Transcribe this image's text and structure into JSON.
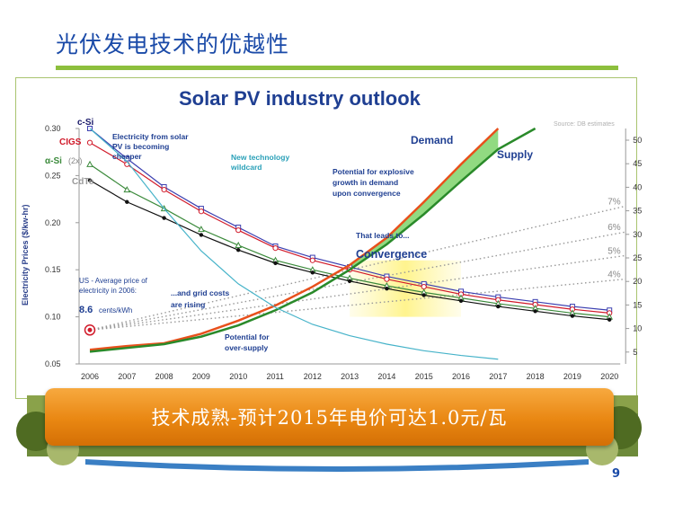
{
  "slide": {
    "title": "光伏发电技术的优越性",
    "banner": "技术成熟-预计2015年电价可达1.0元/瓦",
    "page_number": "9"
  },
  "chart_data": {
    "type": "line",
    "title": "Solar PV industry outlook",
    "source": "Source: DB estimates",
    "ylabel": "Electricity Prices ($/kw-hr)",
    "xlabel": "",
    "x": [
      2006,
      2007,
      2008,
      2009,
      2010,
      2011,
      2012,
      2013,
      2014,
      2015,
      2016,
      2017,
      2018,
      2019,
      2020
    ],
    "x_ticks": [
      "2006",
      "2007",
      "2008",
      "2009",
      "2010",
      "2011",
      "2012",
      "2013",
      "2014",
      "2015",
      "2016",
      "2017",
      "2018",
      "2019",
      "2020"
    ],
    "ylim": [
      0.05,
      0.3
    ],
    "y_ticks": [
      "0.05",
      "0.10",
      "0.15",
      "0.20",
      "0.25",
      "0.30"
    ],
    "y2lim": [
      0,
      50
    ],
    "y2_ticks": [
      "5",
      "10",
      "15",
      "20",
      "25",
      "30",
      "35",
      "40",
      "45",
      "50"
    ],
    "grid": false,
    "series": [
      {
        "name": "c-Si",
        "color": "#3b3fb0",
        "marker": "square",
        "values": [
          0.3,
          0.268,
          0.238,
          0.215,
          0.195,
          0.175,
          0.163,
          0.153,
          0.143,
          0.135,
          0.127,
          0.121,
          0.116,
          0.111,
          0.107
        ]
      },
      {
        "name": "CIGS",
        "color": "#d11a2a",
        "marker": "circle",
        "values": [
          0.285,
          0.262,
          0.235,
          0.212,
          0.192,
          0.173,
          0.16,
          0.15,
          0.14,
          0.132,
          0.124,
          0.118,
          0.113,
          0.108,
          0.104
        ]
      },
      {
        "name": "α-Si (2x)",
        "color": "#3b8a3b",
        "marker": "triangle",
        "values": [
          0.262,
          0.235,
          0.215,
          0.193,
          0.176,
          0.16,
          0.15,
          0.141,
          0.133,
          0.126,
          0.12,
          0.114,
          0.109,
          0.104,
          0.1
        ]
      },
      {
        "name": "CdTe",
        "color": "#111111",
        "marker": "diamond",
        "values": [
          0.245,
          0.222,
          0.205,
          0.187,
          0.171,
          0.157,
          0.147,
          0.138,
          0.13,
          0.123,
          0.117,
          0.111,
          0.106,
          0.101,
          0.097
        ]
      },
      {
        "name": "Demand",
        "color": "#e8501c",
        "values": [
          0.065,
          0.069,
          0.072,
          0.082,
          0.096,
          0.112,
          0.132,
          0.155,
          0.184,
          0.222,
          0.262,
          0.3,
          null,
          null,
          null
        ]
      },
      {
        "name": "Supply",
        "color": "#2a8a2a",
        "values": [
          0.063,
          0.067,
          0.071,
          0.079,
          0.091,
          0.107,
          0.126,
          0.15,
          0.177,
          0.209,
          0.244,
          0.278,
          0.3,
          null,
          null
        ]
      },
      {
        "name": "New technology wildcard",
        "color": "#46b3c9",
        "values": [
          0.3,
          0.265,
          0.215,
          0.17,
          0.135,
          0.11,
          0.092,
          0.08,
          0.071,
          0.064,
          0.059,
          0.055,
          null,
          null,
          null
        ]
      }
    ],
    "growth_lines": [
      {
        "label": "7%",
        "y2_end": 36.0
      },
      {
        "label": "6%",
        "y2_end": 30.5
      },
      {
        "label": "5%",
        "y2_end": 25.5
      },
      {
        "label": "4%",
        "y2_end": 20.5
      }
    ],
    "growth_base": {
      "x": 2006,
      "y": 0.086
    },
    "legend_labels": [
      "c-Si",
      "CIGS",
      "α-Si",
      "(2x)",
      "CdTe"
    ],
    "annotations": {
      "cheaper": [
        "Electricity from solar",
        "PV is becoming",
        "cheaper"
      ],
      "wildcard": [
        "New technology",
        "wildcard"
      ],
      "explosive": [
        "Potential for explosive",
        "growth in demand",
        "upon convergence"
      ],
      "demand": "Demand",
      "supply": "Supply",
      "leads": "That leads to...",
      "convergence": "Convergence",
      "us_price": [
        "US - Average price of",
        "electricity in 2006:"
      ],
      "us_value": "8.6",
      "us_unit": "cents/kWh",
      "grid_costs": [
        "...and grid costs",
        "are rising"
      ],
      "oversupply": [
        "Potential for",
        "over-supply"
      ]
    },
    "highlight_region": {
      "x": [
        2013,
        2016
      ],
      "y": [
        0.1,
        0.16
      ]
    }
  }
}
